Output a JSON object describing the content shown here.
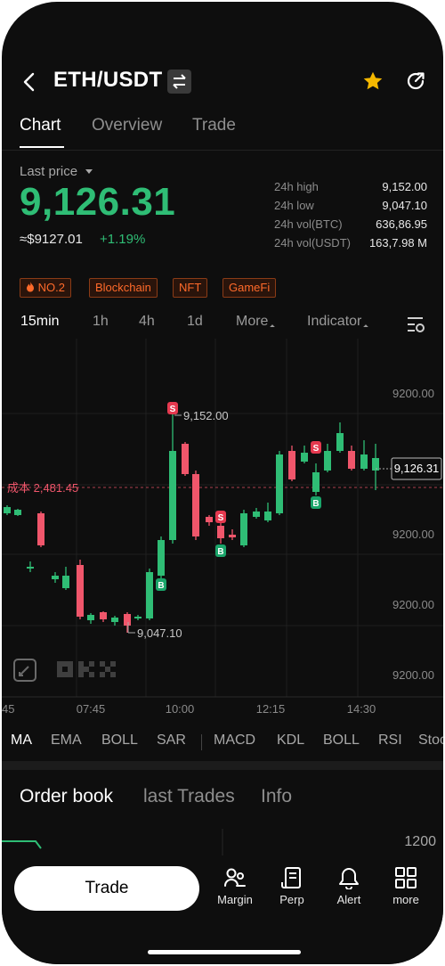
{
  "header": {
    "pair": "ETH/USDT"
  },
  "tabs": [
    {
      "label": "Chart"
    },
    {
      "label": "Overview"
    },
    {
      "label": "Trade"
    }
  ],
  "price": {
    "last_label": "Last price",
    "value": "9,126.31",
    "approx": "≈$9127.01",
    "change": "+1.19%"
  },
  "stats": [
    {
      "label": "24h high",
      "value": "9,152.00"
    },
    {
      "label": "24h low",
      "value": "9,047.10"
    },
    {
      "label": "24h vol(BTC)",
      "value": "636,86.95"
    },
    {
      "label": "24h vol(USDT)",
      "value": "163,7.98 M"
    }
  ],
  "tags": [
    {
      "label": "NO.2"
    },
    {
      "label": "Blockchain"
    },
    {
      "label": "NFT"
    },
    {
      "label": "GameFi"
    }
  ],
  "intervals": [
    {
      "label": "15min"
    },
    {
      "label": "1h"
    },
    {
      "label": "4h"
    },
    {
      "label": "1d"
    },
    {
      "label": "More"
    },
    {
      "label": "Indicator"
    }
  ],
  "chart_data": {
    "type": "candlestick",
    "y_ticks": [
      "9200.00",
      "9200.00",
      "9200.00",
      "9200.00"
    ],
    "x_ticks": [
      "45",
      "07:45",
      "10:00",
      "12:15",
      "14:30"
    ],
    "cost_line_label": "成本 2,481.45",
    "current_price_label": "9,126.31",
    "high_label": "9,152.00",
    "low_label": "9,047.10",
    "markers": [
      {
        "type": "B"
      },
      {
        "type": "S"
      },
      {
        "type": "S"
      },
      {
        "type": "B"
      },
      {
        "type": "S"
      },
      {
        "type": "B"
      }
    ],
    "colors": {
      "up": "#2fbd75",
      "down": "#f0566b"
    }
  },
  "indicators": [
    {
      "label": "MA"
    },
    {
      "label": "EMA"
    },
    {
      "label": "BOLL"
    },
    {
      "label": "SAR"
    },
    {
      "label": "MACD"
    },
    {
      "label": "KDL"
    },
    {
      "label": "BOLL"
    },
    {
      "label": "RSI"
    },
    {
      "label": "Stoch"
    }
  ],
  "orderbook_tabs": [
    {
      "label": "Order book"
    },
    {
      "label": "last Trades"
    },
    {
      "label": "Info"
    }
  ],
  "orderbook": {
    "price_label": "1200"
  },
  "bottom_nav": {
    "trade_label": "Trade",
    "items": [
      {
        "label": "Margin"
      },
      {
        "label": "Perp"
      },
      {
        "label": "Alert"
      },
      {
        "label": "more"
      }
    ]
  },
  "colors": {
    "accent_green": "#2fbd75",
    "accent_red": "#f0566b",
    "star": "#f5b800",
    "tag": "#ff6a2a"
  }
}
